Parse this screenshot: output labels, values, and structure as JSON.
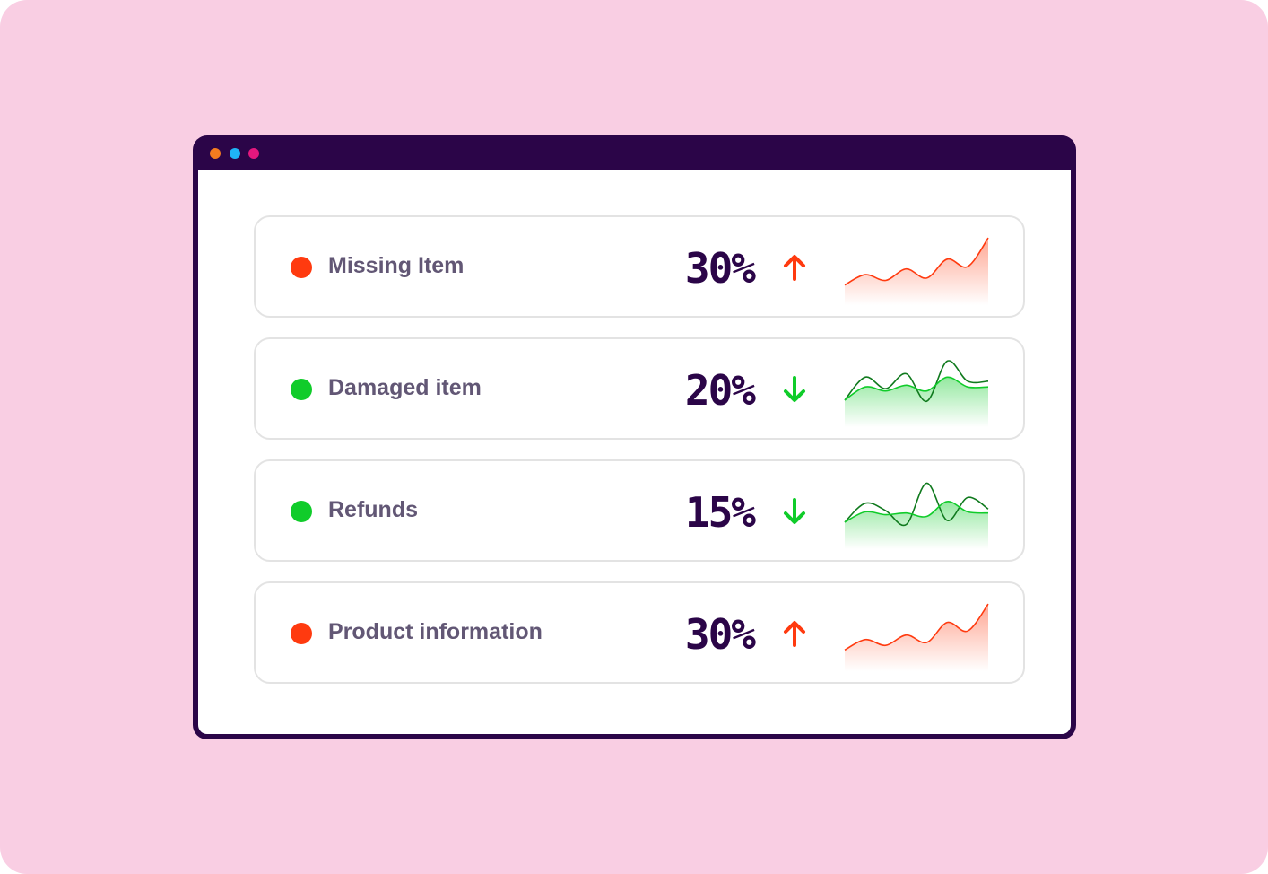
{
  "window": {
    "dots": [
      {
        "name": "orange-dot",
        "color": "#f57c1f"
      },
      {
        "name": "blue-dot",
        "color": "#1fb4f5"
      },
      {
        "name": "pink-dot",
        "color": "#e5177e"
      }
    ]
  },
  "colors": {
    "up": "#ff3a0f",
    "down": "#10cc2a",
    "dark_green": "#107a1e",
    "value": "#2b0548",
    "label": "#625775"
  },
  "metrics": [
    {
      "label": "Missing Item",
      "value": "30%",
      "status": "bad",
      "trend": "up",
      "sparkline": {
        "series": [
          [
            0.1,
            0.28,
            0.18,
            0.38,
            0.22,
            0.55,
            0.42,
            0.92
          ]
        ]
      }
    },
    {
      "label": "Damaged item",
      "value": "20%",
      "status": "good",
      "trend": "down",
      "sparkline": {
        "series": [
          [
            0.22,
            0.62,
            0.42,
            0.68,
            0.2,
            0.9,
            0.55,
            0.55
          ],
          [
            0.22,
            0.45,
            0.38,
            0.48,
            0.38,
            0.62,
            0.45,
            0.45
          ]
        ]
      }
    },
    {
      "label": "Refunds",
      "value": "15%",
      "status": "good",
      "trend": "down",
      "sparkline": {
        "series": [
          [
            0.22,
            0.55,
            0.42,
            0.18,
            0.9,
            0.25,
            0.65,
            0.45
          ],
          [
            0.22,
            0.4,
            0.35,
            0.38,
            0.32,
            0.58,
            0.4,
            0.38
          ]
        ]
      }
    },
    {
      "label": "Product information",
      "value": "30%",
      "status": "bad",
      "trend": "up",
      "sparkline": {
        "series": [
          [
            0.12,
            0.3,
            0.2,
            0.38,
            0.25,
            0.6,
            0.45,
            0.92
          ]
        ]
      }
    }
  ]
}
